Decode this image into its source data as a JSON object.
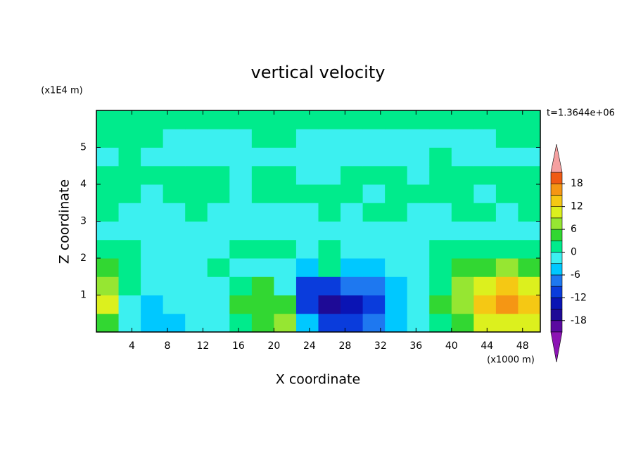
{
  "chart_data": {
    "type": "contour",
    "title": "vertical velocity",
    "x_label": "X coordinate",
    "y_label": "Z coordinate",
    "x_unit": "(x1000 m)",
    "y_unit": "(x1E4 m)",
    "annotation": "t=1.3644e+06",
    "xlim": [
      0,
      50
    ],
    "ylim": [
      0,
      6
    ],
    "xticks": [
      4,
      8,
      12,
      16,
      20,
      24,
      28,
      32,
      36,
      40,
      44,
      48
    ],
    "yticks": [
      1,
      2,
      3,
      4,
      5
    ],
    "x": [
      1.25,
      3.75,
      6.25,
      8.75,
      11.25,
      13.75,
      16.25,
      18.75,
      21.25,
      23.75,
      26.25,
      28.75,
      31.25,
      33.75,
      36.25,
      38.75,
      41.25,
      43.75,
      46.25,
      48.75
    ],
    "y": [
      0.25,
      0.75,
      1.25,
      1.75,
      2.25,
      2.75,
      3.25,
      3.75,
      4.25,
      4.75,
      5.25,
      5.75
    ],
    "z": [
      [
        5,
        -2,
        -4,
        -4,
        -2,
        -1,
        2,
        5,
        7,
        -4,
        -12,
        -10,
        -7,
        -5,
        -1,
        2,
        5,
        9,
        11,
        10
      ],
      [
        9,
        -1,
        -4,
        -3,
        -2,
        -1,
        3,
        5,
        4,
        -10,
        -17,
        -14,
        -10,
        -6,
        -2,
        3,
        8,
        13,
        16,
        14
      ],
      [
        8,
        0,
        -2,
        -2,
        -1,
        -1,
        1,
        3,
        -2,
        -12,
        -12,
        -9,
        -7,
        -5,
        -2,
        2,
        7,
        11,
        13,
        11
      ],
      [
        4,
        1,
        -1,
        -1,
        -1,
        0,
        -1,
        -2,
        -3,
        -5,
        2,
        -4,
        -4,
        -3,
        -1,
        1,
        4,
        5,
        6,
        5
      ],
      [
        1,
        0,
        -1,
        -1,
        -1,
        -1,
        1,
        2,
        1,
        -1,
        0,
        -1,
        -1,
        -1,
        -1,
        0,
        1,
        2,
        2,
        1
      ],
      [
        -1,
        -1,
        -1,
        -1,
        -1,
        -1,
        -1,
        -1,
        -1,
        -1,
        -1,
        -1,
        -1,
        -1,
        -1,
        -1,
        -1,
        -1,
        -1,
        -1
      ],
      [
        1,
        -1,
        -1,
        -1,
        1,
        -1,
        -1,
        -1,
        -1,
        -1,
        1,
        -1,
        1,
        1,
        -1,
        -1,
        1,
        1,
        -1,
        1
      ],
      [
        1,
        1,
        -1,
        1,
        1,
        1,
        -1,
        1,
        1,
        1,
        1,
        1,
        -1,
        1,
        1,
        1,
        1,
        -1,
        1,
        1
      ],
      [
        1,
        1,
        1,
        1,
        1,
        1,
        -1,
        1,
        1,
        -1,
        -1,
        1,
        1,
        1,
        -1,
        1,
        1,
        1,
        1,
        1
      ],
      [
        -1,
        1,
        -1,
        -1,
        -1,
        -1,
        -1,
        -1,
        -1,
        -1,
        -1,
        -1,
        -1,
        -1,
        -1,
        1,
        -1,
        -1,
        -1,
        -1
      ],
      [
        1,
        1,
        1,
        -1,
        -1,
        -1,
        -1,
        1,
        1,
        -1,
        -1,
        -1,
        -1,
        -1,
        -1,
        -1,
        -1,
        -1,
        1,
        1
      ],
      [
        1,
        1,
        1,
        1,
        1,
        1,
        1,
        1,
        1,
        1,
        1,
        1,
        1,
        1,
        1,
        1,
        1,
        1,
        1,
        1
      ]
    ],
    "levels": [
      -21,
      -18,
      -15,
      -12,
      -9,
      -6,
      -3,
      0,
      3,
      6,
      9,
      12,
      15,
      18,
      21
    ],
    "colors": [
      "#8c14b4",
      "#5a0aa0",
      "#1e0a96",
      "#0a14b4",
      "#0a3cdc",
      "#1e78f0",
      "#00c8ff",
      "#3cf0f0",
      "#00eb8c",
      "#32d732",
      "#96e632",
      "#dcf01e",
      "#f5c814",
      "#f59614",
      "#f05a14",
      "#e61e1e",
      "#f5a0a0"
    ],
    "colorbar_ticks": [
      -18,
      -12,
      -6,
      0,
      6,
      12,
      18
    ]
  }
}
